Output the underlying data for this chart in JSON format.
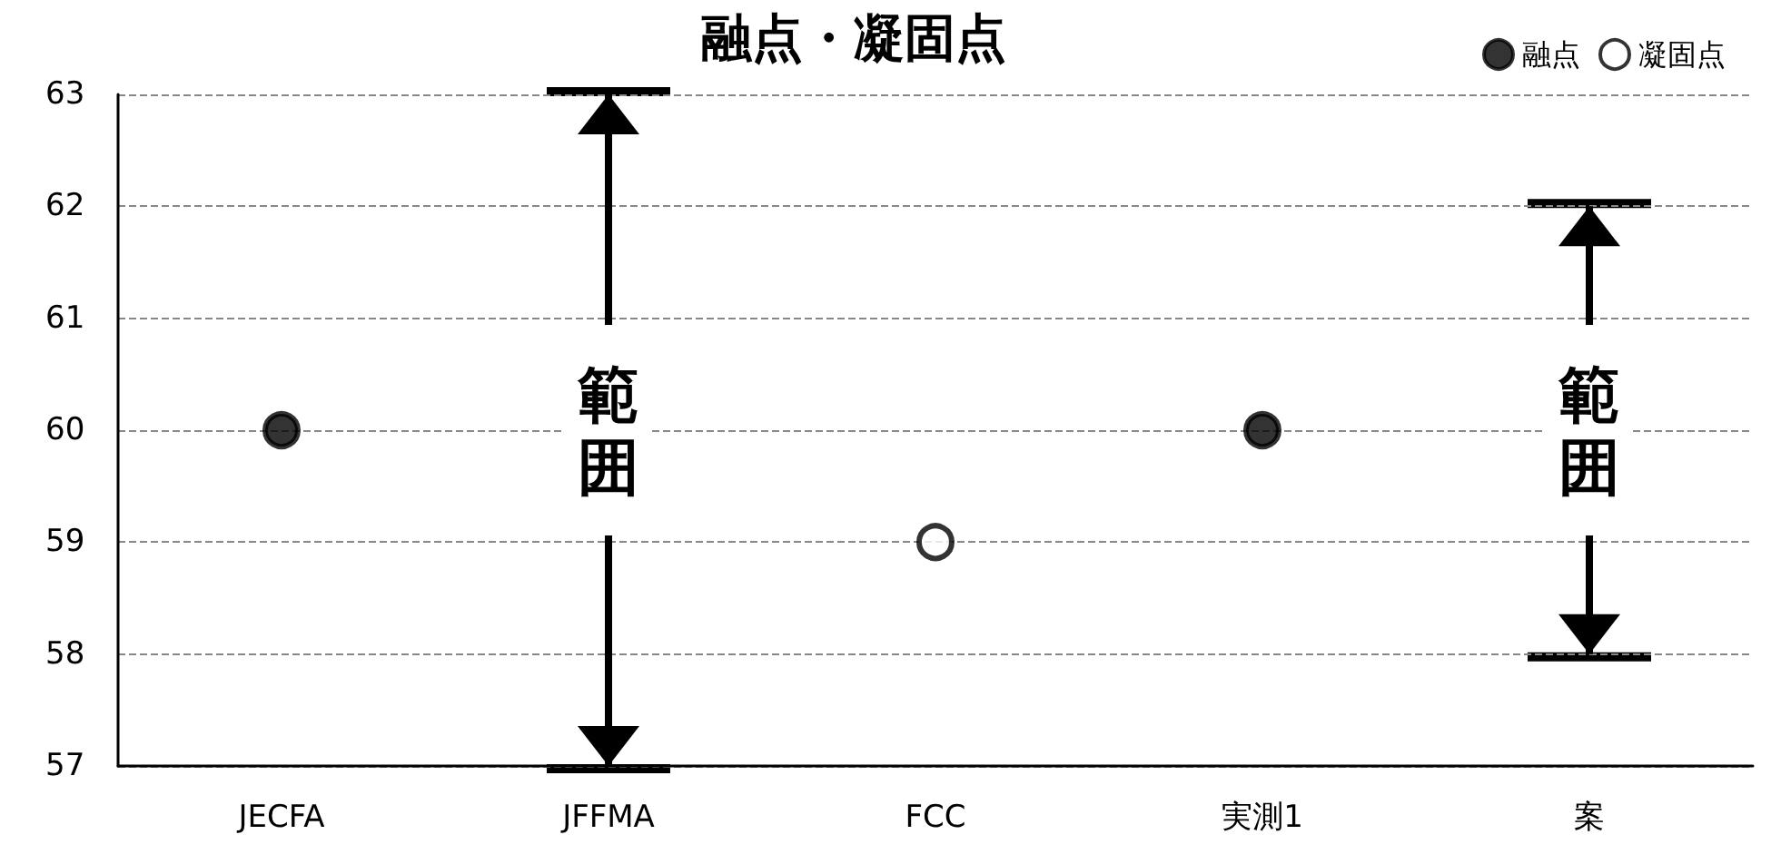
{
  "chart_data": {
    "type": "scatter",
    "title": "融点・凝固点",
    "categories": [
      "JECFA",
      "JFFMA",
      "FCC",
      "実測1",
      "案"
    ],
    "series": [
      {
        "name": "融点",
        "color": "#000000",
        "values": [
          60,
          null,
          null,
          60,
          null
        ]
      },
      {
        "name": "凝固点",
        "color": "#ffffff",
        "values": [
          null,
          null,
          59,
          null,
          null
        ]
      },
      {
        "type": "bar",
        "color": "#000000",
        "base": [
          null,
          57,
          null,
          null,
          58
        ],
        "values": [
          null,
          6,
          null,
          null,
          4
        ]
      }
    ],
    "annotations": [
      "範囲",
      "範囲"
    ],
    "ylim": [
      57,
      63
    ],
    "yticks": [
      57,
      58,
      59,
      60,
      61,
      62,
      63
    ],
    "grid": "y",
    "legend": "top right",
    "marker": "circle"
  }
}
